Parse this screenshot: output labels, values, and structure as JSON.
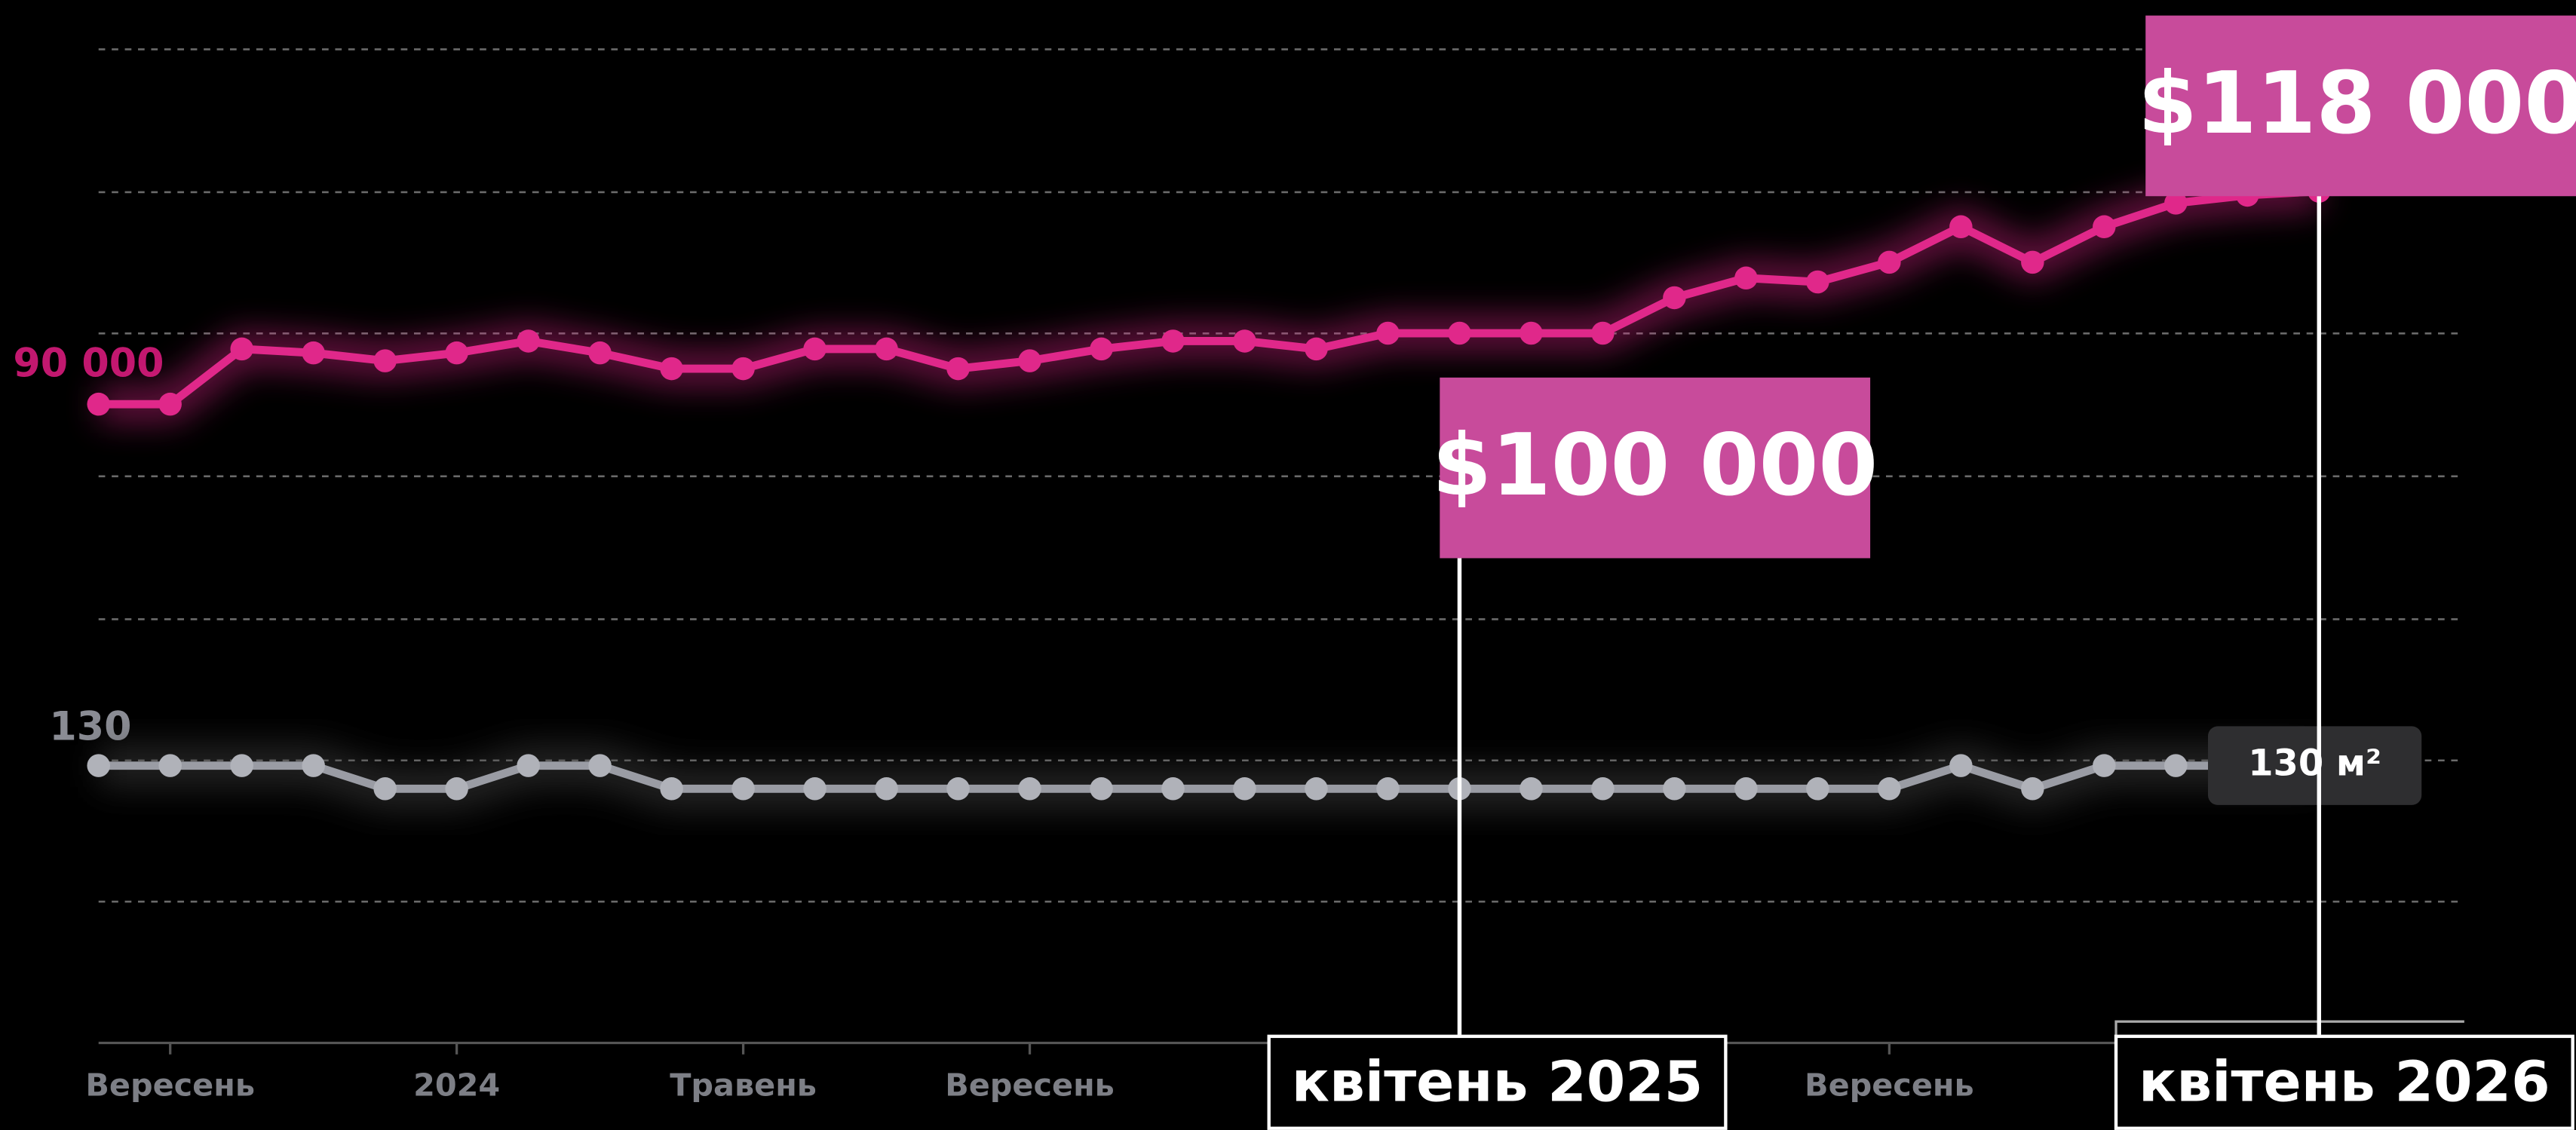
{
  "chart_data": {
    "type": "line",
    "categories": [
      null,
      "Вересень",
      null,
      null,
      null,
      "2024",
      null,
      null,
      null,
      "Травень",
      null,
      null,
      null,
      "Вересень",
      null,
      null,
      null,
      null,
      null,
      "квітень 2025",
      null,
      null,
      null,
      null,
      null,
      "Вересень",
      null,
      null,
      null,
      null,
      null,
      "квітень 2026"
    ],
    "series": [
      {
        "color": "#e0288a",
        "axis": "y",
        "values": [
          91000,
          91000,
          98000,
          97500,
          96500,
          97500,
          99000,
          97500,
          95500,
          95500,
          98000,
          98000,
          95500,
          96500,
          98000,
          99000,
          99000,
          98000,
          100000,
          100000,
          100000,
          100000,
          104500,
          107000,
          106500,
          109000,
          113500,
          109000,
          113500,
          116500,
          117500,
          118000
        ]
      },
      {
        "color": "#9a9ca4",
        "axis": "y2",
        "values": [
          130,
          130,
          130,
          130,
          128,
          128,
          130,
          130,
          128,
          128,
          128,
          128,
          128,
          128,
          128,
          128,
          128,
          128,
          128,
          128,
          128,
          128,
          128,
          128,
          128,
          128,
          130,
          128,
          130,
          130,
          130,
          130
        ]
      }
    ],
    "ylim": [
      10000,
      136000
    ],
    "yticks": [
      {
        "value": 90000,
        "label": "90 000"
      }
    ],
    "y2lim": [
      106,
      192
    ],
    "y2ticks": [
      130
    ],
    "callouts": [
      {
        "index": 19,
        "value": 100000,
        "label": "$100 000"
      },
      {
        "index": 31,
        "value": 118000,
        "label": "$118 000"
      }
    ],
    "end_label": {
      "index": 30,
      "value": 130,
      "label": "130 м²"
    }
  }
}
